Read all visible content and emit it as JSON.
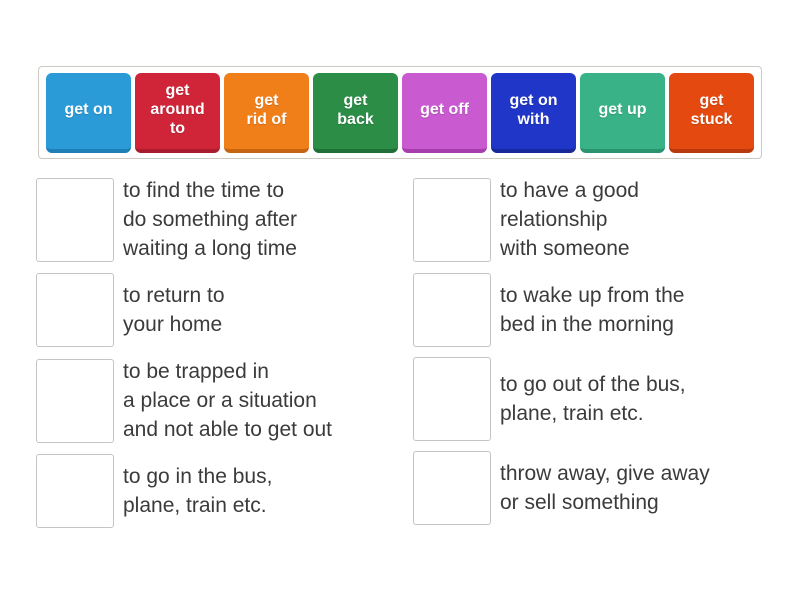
{
  "word_bank": {
    "tiles": [
      {
        "label": "get on",
        "bg": "#2b9bd7",
        "edge": "#1d7fb5"
      },
      {
        "label": "get\naround\nto",
        "bg": "#d02539",
        "edge": "#a81c2d"
      },
      {
        "label": "get\nrid of",
        "bg": "#f07f1a",
        "edge": "#c66511"
      },
      {
        "label": "get\nback",
        "bg": "#2b8d46",
        "edge": "#1f6f36"
      },
      {
        "label": "get off",
        "bg": "#c95ad0",
        "edge": "#a63fad"
      },
      {
        "label": "get on\nwith",
        "bg": "#2036c8",
        "edge": "#182a9b"
      },
      {
        "label": "get up",
        "bg": "#38b286",
        "edge": "#2a9370"
      },
      {
        "label": "get\nstuck",
        "bg": "#e4490f",
        "edge": "#b8390b"
      }
    ]
  },
  "matches": {
    "left": [
      {
        "definition": "to find the time to\ndo something after\nwaiting a long time"
      },
      {
        "definition": "to return to\nyour home"
      },
      {
        "definition": "to be trapped in\na place or a situation\nand not able to get out"
      },
      {
        "definition": "to go in the bus,\nplane, train etc."
      }
    ],
    "right": [
      {
        "definition": "to have a good\nrelationship\nwith someone"
      },
      {
        "definition": "to wake up from the\nbed in the morning"
      },
      {
        "definition": "to go out of the bus,\nplane, train etc."
      },
      {
        "definition": "throw away, give away\nor sell something"
      }
    ]
  },
  "colors": {
    "page_background": "#ffffff",
    "bank_border": "#ccc9c3",
    "slot_border": "#c4c4c4",
    "definition_text": "#3b3b3b"
  }
}
